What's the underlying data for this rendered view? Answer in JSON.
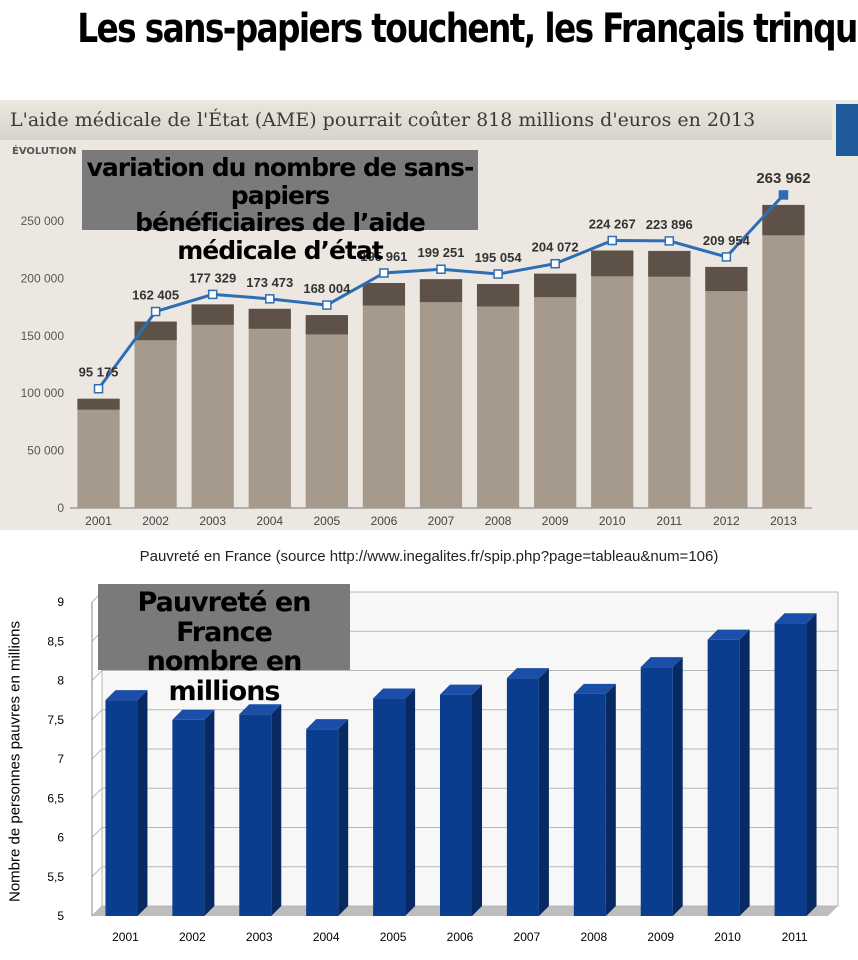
{
  "headline": "Les sans-papiers touchent,  les Français trinquent.",
  "top_panel": {
    "banner_title": "L'aide médicale de l'État (AME) pourrait coûter 818 millions d'euros en 2013",
    "subtitle_partial": "ÉVOLUTION",
    "overlay_text": [
      "variation du nombre de sans-papiers",
      "bénéficiaires de l’aide médicale d’état"
    ],
    "accent_color": "#1f5a9a"
  },
  "bottom_panel": {
    "source_title": "Pauvreté en France (source http://www.inegalites.fr/spip.php?page=tableau&num=106)",
    "overlay_text": [
      "Pauvreté en France",
      "nombre en millions"
    ],
    "ylabel": "Nombre de personnes pauvres en millions"
  },
  "chart_data": [
    {
      "type": "bar",
      "categories": [
        "2001",
        "2002",
        "2003",
        "2004",
        "2005",
        "2006",
        "2007",
        "2008",
        "2009",
        "2010",
        "2011",
        "2012",
        "2013"
      ],
      "values": [
        95175,
        162405,
        177329,
        173473,
        168004,
        195961,
        199251,
        195054,
        204072,
        224267,
        223896,
        209954,
        263962
      ],
      "value_labels": [
        "95 175",
        "162 405",
        "177 329",
        "173 473",
        "168 004",
        "195 961",
        "199 251",
        "195 054",
        "204 072",
        "224 267",
        "223 896",
        "209 954",
        "263 962"
      ],
      "ylim": [
        0,
        270000
      ],
      "yticks": [
        0,
        50000,
        100000,
        150000,
        200000,
        250000
      ],
      "ytick_labels": [
        "0",
        "50 000",
        "100 000",
        "150 000",
        "200 000",
        "250 000"
      ],
      "line_overlay": true,
      "colors": {
        "bar_light": "#a59a8c",
        "bar_dark": "#5e5248",
        "line": "#2d6db5"
      }
    },
    {
      "type": "bar",
      "categories": [
        "2001",
        "2002",
        "2003",
        "2004",
        "2005",
        "2006",
        "2007",
        "2008",
        "2009",
        "2010",
        "2011"
      ],
      "values": [
        7.75,
        7.5,
        7.57,
        7.38,
        7.77,
        7.82,
        8.03,
        7.83,
        8.17,
        8.52,
        8.73
      ],
      "ylim": [
        5,
        9
      ],
      "yticks": [
        5,
        5.5,
        6,
        6.5,
        7,
        7.5,
        8,
        8.5,
        9
      ],
      "ytick_labels": [
        "5",
        "5,5",
        "6",
        "6,5",
        "7",
        "7,5",
        "8",
        "8,5",
        "9"
      ],
      "grid": true,
      "colors": {
        "bar": "#0b3d8f",
        "bar_side": "#072a63",
        "bar_top": "#1a4ea8"
      }
    }
  ]
}
